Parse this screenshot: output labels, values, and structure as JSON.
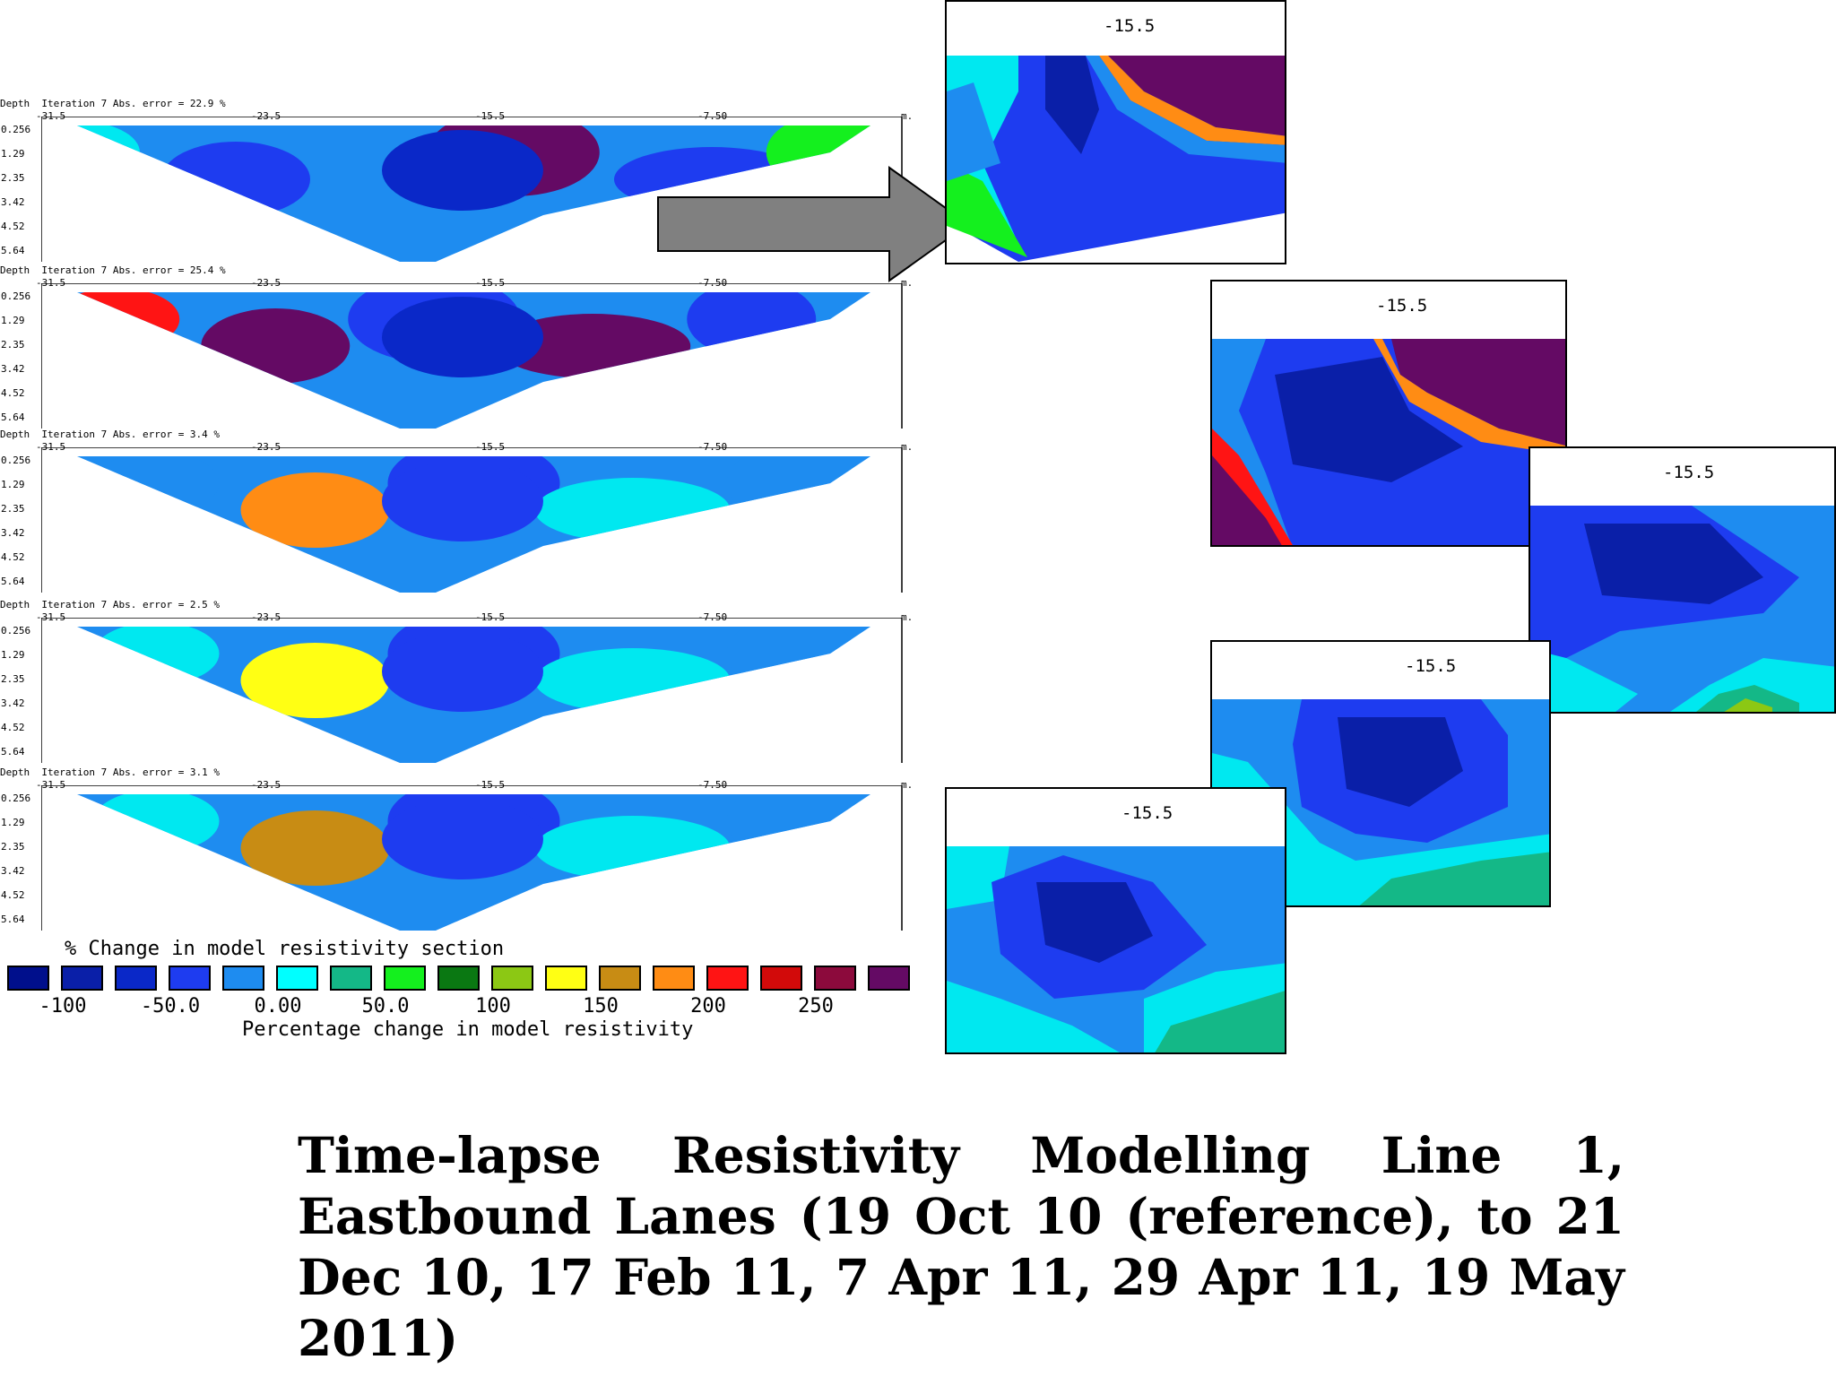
{
  "sections": [
    {
      "depth_label": "Depth",
      "header": "Iteration 7 Abs. error = 22.9 %"
    },
    {
      "depth_label": "Depth",
      "header": "Iteration 7 Abs. error = 25.4 %"
    },
    {
      "depth_label": "Depth",
      "header": "Iteration 7 Abs. error = 3.4 %"
    },
    {
      "depth_label": "Depth",
      "header": "Iteration 7 Abs. error = 2.5 %"
    },
    {
      "depth_label": "Depth",
      "header": "Iteration 7 Abs. error = 3.1 %"
    }
  ],
  "x_ticks": [
    "-31.5",
    "-23.5",
    "-15.5",
    "-7.50",
    "m."
  ],
  "depth_ticks": [
    "0.256",
    "1.29",
    "2.35",
    "3.42",
    "4.52",
    "5.64"
  ],
  "insets": [
    {
      "label": "-15.5"
    },
    {
      "label": "-15.5"
    },
    {
      "label": "-15.5"
    },
    {
      "label": "-15.5"
    },
    {
      "label": "-15.5"
    }
  ],
  "legend": {
    "title": "% Change in model resistivity section",
    "axis_label": "Percentage change in model resistivity",
    "values": [
      "-100",
      "-50.0",
      "0.00",
      "50.0",
      "100",
      "150",
      "200",
      "250"
    ],
    "colors": [
      "#000f8c",
      "#0a1fa8",
      "#0a28c8",
      "#1e3cf0",
      "#1e8cf0",
      "#00ffff",
      "#14b887",
      "#14f01e",
      "#0a7812",
      "#8cc814",
      "#ffff14",
      "#c88c14",
      "#ff8c14",
      "#ff1414",
      "#d20a0a",
      "#8c0a3c",
      "#640a64"
    ]
  },
  "caption": "Time-lapse Resistivity Modelling Line 1, Eastbound Lanes (19 Oct 10 (reference), to 21 Dec 10, 17 Feb 11, 7 Apr 11, 29 Apr 11, 19 May 2011)"
}
